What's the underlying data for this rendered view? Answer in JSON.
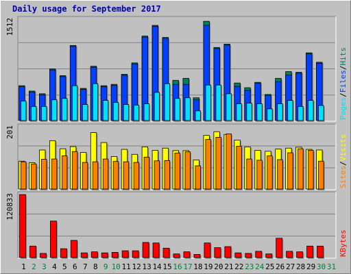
{
  "title": "Daily usage for September 2017",
  "colors": {
    "hits": "#00805c",
    "files": "#0040ff",
    "pages": "#00e0ff",
    "visits": "#ffff00",
    "sites": "#ff8000",
    "kbytes": "#ff0000",
    "weekday_label": "#000000",
    "weekend_label": "#008040"
  },
  "chart_data": [
    {
      "type": "bar",
      "panel": "top",
      "max_label": "1512",
      "ylim": [
        0,
        1512
      ],
      "legend": [
        "Pages",
        "Files",
        "Hits"
      ],
      "categories": [
        "1",
        "2",
        "3",
        "4",
        "5",
        "6",
        "7",
        "8",
        "9",
        "10",
        "11",
        "12",
        "13",
        "14",
        "15",
        "16",
        "17",
        "18",
        "19",
        "20",
        "21",
        "22",
        "23",
        "24",
        "25",
        "26",
        "27",
        "28",
        "29",
        "30",
        "31"
      ],
      "weekend_days": [
        "2",
        "3",
        "9",
        "10",
        "16",
        "17",
        "23",
        "24",
        "30",
        "31"
      ],
      "series": [
        {
          "name": "Hits",
          "values": [
            520,
            440,
            400,
            770,
            670,
            1120,
            480,
            810,
            520,
            540,
            690,
            860,
            1260,
            1420,
            1240,
            600,
            630,
            340,
            1480,
            1090,
            1140,
            560,
            490,
            570,
            390,
            630,
            730,
            720,
            1010,
            870,
            0
          ]
        },
        {
          "name": "Files",
          "values": [
            505,
            425,
            385,
            755,
            655,
            1105,
            465,
            795,
            505,
            525,
            675,
            845,
            1245,
            1405,
            1225,
            540,
            540,
            310,
            1420,
            1075,
            1125,
            510,
            450,
            555,
            375,
            580,
            680,
            705,
            995,
            855,
            0
          ]
        },
        {
          "name": "Pages",
          "values": [
            290,
            210,
            210,
            310,
            330,
            520,
            240,
            550,
            300,
            270,
            240,
            230,
            250,
            420,
            550,
            330,
            340,
            145,
            530,
            530,
            400,
            250,
            260,
            250,
            175,
            250,
            300,
            210,
            300,
            225,
            0
          ]
        }
      ]
    },
    {
      "type": "bar",
      "panel": "middle",
      "max_label": "201",
      "ylim": [
        0,
        201
      ],
      "legend": [
        "Sites",
        "Visits"
      ],
      "categories": [
        "1",
        "2",
        "3",
        "4",
        "5",
        "6",
        "7",
        "8",
        "9",
        "10",
        "11",
        "12",
        "13",
        "14",
        "15",
        "16",
        "17",
        "18",
        "19",
        "20",
        "21",
        "22",
        "23",
        "24",
        "25",
        "26",
        "27",
        "28",
        "29",
        "30",
        "31"
      ],
      "series": [
        {
          "name": "Visits",
          "values": [
            90,
            85,
            126,
            156,
            130,
            137,
            118,
            182,
            150,
            105,
            128,
            112,
            136,
            125,
            132,
            124,
            124,
            94,
            173,
            185,
            176,
            158,
            136,
            125,
            122,
            129,
            132,
            135,
            128,
            126,
            0
          ]
        },
        {
          "name": "Sites",
          "values": [
            88,
            81,
            96,
            97,
            107,
            121,
            86,
            88,
            97,
            89,
            88,
            86,
            103,
            91,
            92,
            116,
            120,
            75,
            160,
            167,
            178,
            138,
            97,
            93,
            107,
            95,
            117,
            130,
            125,
            90,
            0
          ]
        }
      ]
    },
    {
      "type": "bar",
      "panel": "bottom",
      "max_label": "120833",
      "ylim": [
        0,
        120833
      ],
      "legend": [
        "KBytes"
      ],
      "categories": [
        "1",
        "2",
        "3",
        "4",
        "5",
        "6",
        "7",
        "8",
        "9",
        "10",
        "11",
        "12",
        "13",
        "14",
        "15",
        "16",
        "17",
        "18",
        "19",
        "20",
        "21",
        "22",
        "23",
        "24",
        "25",
        "26",
        "27",
        "28",
        "29",
        "30",
        "31"
      ],
      "series": [
        {
          "name": "KBytes",
          "values": [
            120833,
            22000,
            8000,
            70000,
            17000,
            33000,
            9000,
            11000,
            9000,
            10000,
            13000,
            13000,
            29000,
            28000,
            18000,
            7000,
            11000,
            6000,
            28000,
            19000,
            21000,
            9000,
            8000,
            12000,
            7000,
            37000,
            12000,
            11000,
            22000,
            22000,
            0
          ]
        }
      ]
    }
  ]
}
